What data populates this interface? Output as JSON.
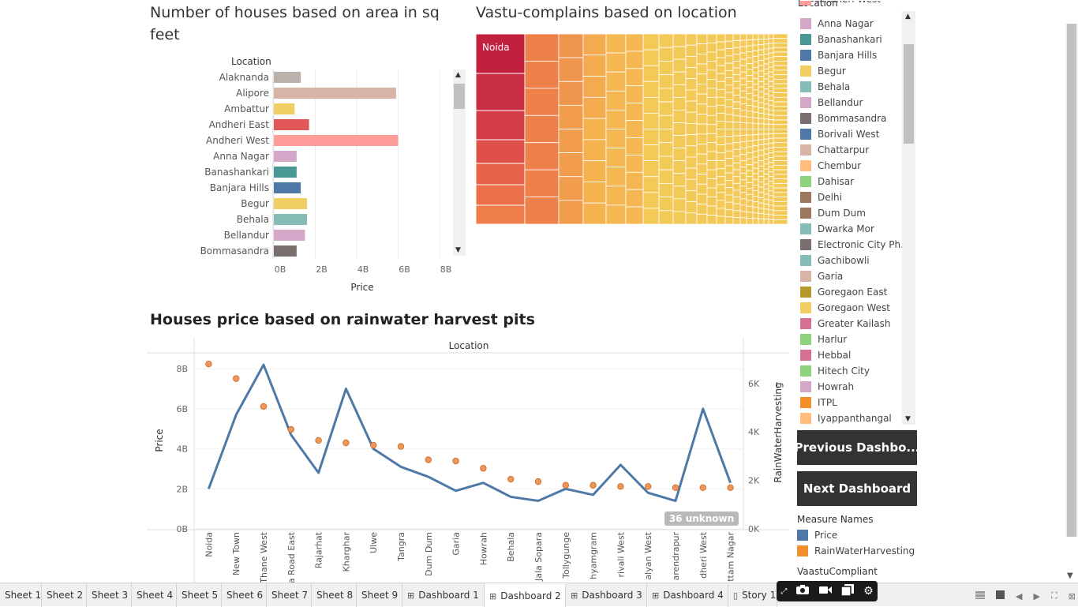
{
  "bar_chart": {
    "title": "Number of houses based on area in sq feet",
    "header": "Location",
    "xlabel": "Price",
    "ticks": [
      "0B",
      "2B",
      "4B",
      "6B",
      "8B"
    ],
    "chart_data": {
      "type": "bar",
      "orientation": "horizontal",
      "categories": [
        "Alaknanda",
        "Alipore",
        "Ambattur",
        "Andheri East",
        "Andheri West",
        "Anna Nagar",
        "Banashankari",
        "Banjara Hills",
        "Begur",
        "Behala",
        "Bellandur",
        "Bommasandra"
      ],
      "values": [
        1.3,
        5.9,
        1.0,
        1.7,
        6.0,
        1.1,
        1.1,
        1.3,
        1.6,
        1.6,
        1.5,
        1.1
      ],
      "colors": [
        "#bab0ac",
        "#d7b5a6",
        "#f1ce63",
        "#e15759",
        "#ff9d9a",
        "#d4a6c8",
        "#499894",
        "#4e79a7",
        "#f1ce63",
        "#86bcb6",
        "#d4a6c8",
        "#79706e"
      ],
      "xlim": [
        0,
        8
      ],
      "unit": "B"
    }
  },
  "treemap": {
    "title": "Vastu-complains based on location",
    "top_label": "Noida",
    "colors": [
      "#c02a44",
      "#d23a44",
      "#e0574a",
      "#ea6e4a",
      "#f0884c",
      "#f4a24e",
      "#f5b752",
      "#f3c957"
    ]
  },
  "line_chart": {
    "title": "Houses price based on rainwater harvest pits",
    "header": "Location",
    "ylabel_left": "Price",
    "ylabel_right": "RainWaterHarvesting",
    "left_ticks": [
      "8B",
      "6B",
      "4B",
      "2B",
      "0B"
    ],
    "right_ticks": [
      "6K",
      "4K",
      "2K",
      "0K"
    ],
    "unknown_badge": "36 unknown",
    "chart_data": {
      "type": "line",
      "categories": [
        "Noida",
        "New Town",
        "Thane West",
        "a Road East",
        "Rajarhat",
        "Kharghar",
        "Ulwe",
        "Tangra",
        "Dum Dum",
        "Garia",
        "Howrah",
        "Behala",
        "Jala Sopara",
        "Tollygunge",
        "hyamgram",
        "rivali West",
        "alyan West",
        "arendrapur",
        "dheri West",
        "ttam Nagar"
      ],
      "series": [
        {
          "name": "Price",
          "color": "#4e79a7",
          "axis": "left",
          "values": [
            2.0,
            5.7,
            8.2,
            4.7,
            2.8,
            7.0,
            4.0,
            3.1,
            2.6,
            1.9,
            2.3,
            1.6,
            1.4,
            2.0,
            1.7,
            3.2,
            1.8,
            1.4,
            6.0,
            2.3
          ]
        },
        {
          "name": "RainWaterHarvesting",
          "color": "#f28e2b",
          "axis": "right",
          "values": [
            6800,
            6200,
            5050,
            4100,
            3650,
            3550,
            3450,
            3400,
            2850,
            2800,
            2500,
            2050,
            1950,
            1800,
            1800,
            1750,
            1750,
            1700,
            1700,
            1700
          ]
        }
      ],
      "ylim_left": [
        0,
        8.6
      ],
      "ylim_right": [
        0,
        7100
      ]
    }
  },
  "legend": {
    "title": "Location",
    "partial_top": "Andheri West",
    "items": [
      {
        "label": "Anna Nagar",
        "color": "#d4a6c8"
      },
      {
        "label": "Banashankari",
        "color": "#499894"
      },
      {
        "label": "Banjara Hills",
        "color": "#4e79a7"
      },
      {
        "label": "Begur",
        "color": "#f1ce63"
      },
      {
        "label": "Behala",
        "color": "#86bcb6"
      },
      {
        "label": "Bellandur",
        "color": "#d4a6c8"
      },
      {
        "label": "Bommasandra",
        "color": "#79706e"
      },
      {
        "label": "Borivali West",
        "color": "#4e79a7"
      },
      {
        "label": "Chattarpur",
        "color": "#d7b5a6"
      },
      {
        "label": "Chembur",
        "color": "#ffbe7d"
      },
      {
        "label": "Dahisar",
        "color": "#8cd17d"
      },
      {
        "label": "Delhi",
        "color": "#9d7660"
      },
      {
        "label": "Dum Dum",
        "color": "#9d7660"
      },
      {
        "label": "Dwarka Mor",
        "color": "#86bcb6"
      },
      {
        "label": "Electronic City Ph..",
        "color": "#79706e"
      },
      {
        "label": "Gachibowli",
        "color": "#86bcb6"
      },
      {
        "label": "Garia",
        "color": "#d7b5a6"
      },
      {
        "label": "Goregaon East",
        "color": "#b6992d"
      },
      {
        "label": "Goregaon West",
        "color": "#f1ce63"
      },
      {
        "label": "Greater Kailash",
        "color": "#d37295"
      },
      {
        "label": "Harlur",
        "color": "#8cd17d"
      },
      {
        "label": "Hebbal",
        "color": "#d37295"
      },
      {
        "label": "Hitech City",
        "color": "#8cd17d"
      },
      {
        "label": "Howrah",
        "color": "#d4a6c8"
      },
      {
        "label": "ITPL",
        "color": "#f28e2b"
      },
      {
        "label": "Iyappanthangal",
        "color": "#ffbe7d"
      }
    ]
  },
  "buttons": {
    "previous": "Previous Dashbo...",
    "next": "Next Dashboard"
  },
  "measure_legend": {
    "title": "Measure Names",
    "items": [
      {
        "label": "Price",
        "color": "#4e79a7"
      },
      {
        "label": "RainWaterHarvesting",
        "color": "#f28e2b"
      }
    ]
  },
  "vastu_legend": {
    "title": "VaastuCompliant"
  },
  "tabs": [
    {
      "label": "Sheet 1",
      "icon": ""
    },
    {
      "label": "Sheet 2",
      "icon": ""
    },
    {
      "label": "Sheet 3",
      "icon": ""
    },
    {
      "label": "Sheet 4",
      "icon": ""
    },
    {
      "label": "Sheet 5",
      "icon": ""
    },
    {
      "label": "Sheet 6",
      "icon": ""
    },
    {
      "label": "Sheet 7",
      "icon": ""
    },
    {
      "label": "Sheet 8",
      "icon": ""
    },
    {
      "label": "Sheet 9",
      "icon": ""
    },
    {
      "label": "Dashboard 1",
      "icon": "dashboard-icon"
    },
    {
      "label": "Dashboard 2",
      "icon": "dashboard-icon"
    },
    {
      "label": "Dashboard 3",
      "icon": "dashboard-icon"
    },
    {
      "label": "Dashboard 4",
      "icon": "dashboard-icon"
    },
    {
      "label": "Story 1",
      "icon": "story-icon"
    }
  ],
  "active_tab": "Dashboard 2"
}
